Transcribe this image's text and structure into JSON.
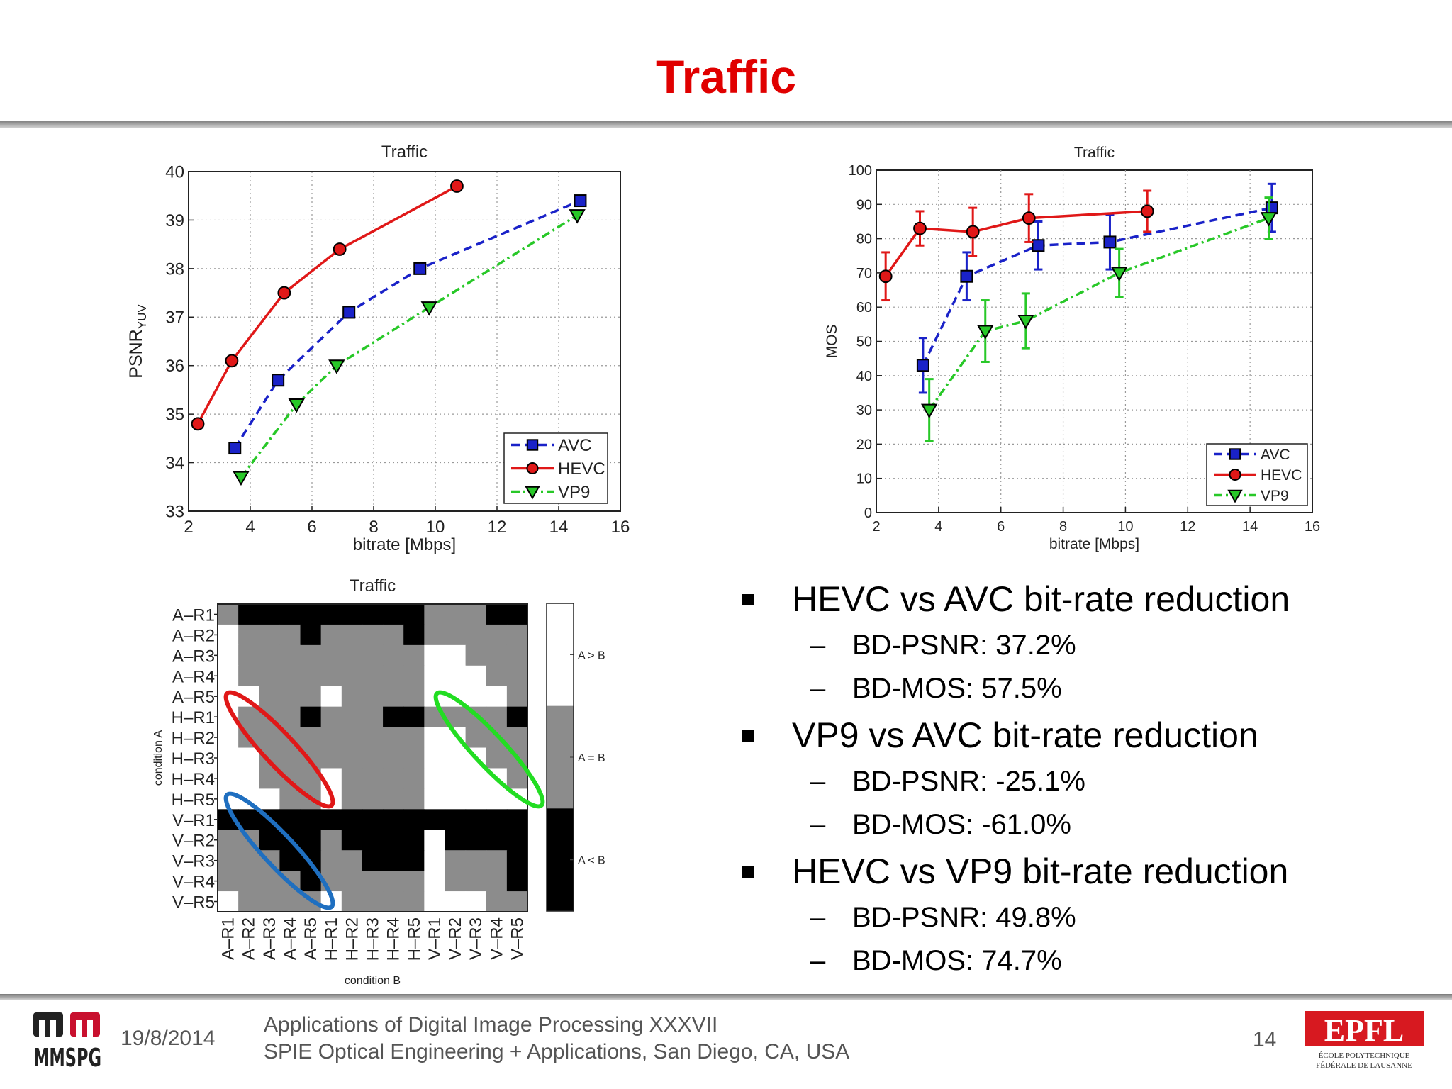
{
  "slide": {
    "title": "Traffic",
    "bullets": [
      {
        "text": "HEVC vs AVC bit-rate reduction",
        "subs": [
          "BD-PSNR: 37.2%",
          "BD-MOS: 57.5%"
        ]
      },
      {
        "text": "VP9 vs AVC bit-rate reduction",
        "subs": [
          "BD-PSNR: -25.1%",
          "BD-MOS: -61.0%"
        ]
      },
      {
        "text": "HEVC vs VP9 bit-rate reduction",
        "subs": [
          "BD-PSNR: 49.8%",
          "BD-MOS: 74.7%"
        ]
      }
    ],
    "dash": "–"
  },
  "footer": {
    "date": "19/8/2014",
    "line1": "Applications of Digital Image Processing XXXVII",
    "line2": "SPIE Optical Engineering + Applications, San Diego, CA, USA",
    "page": "14",
    "logo_left": "MMSPG",
    "logo_right": "EPFL",
    "logo_right_sub1": "ÉCOLE POLYTECHNIQUE",
    "logo_right_sub2": "FÉDÉRALE DE LAUSANNE"
  },
  "colors": {
    "avc": "#1a22c8",
    "hevc": "#e01818",
    "vp9": "#28c828",
    "title": "#e00000",
    "oval_red": "#e01818",
    "oval_green": "#22dd22",
    "oval_blue": "#1f6fc0"
  },
  "chart_data": [
    {
      "type": "line",
      "title": "Traffic",
      "xlabel": "bitrate [Mbps]",
      "ylabel": "PSNR",
      "ylabel_sub": "YUV",
      "xlim": [
        2,
        16
      ],
      "ylim": [
        33,
        40
      ],
      "xticks": [
        2,
        4,
        6,
        8,
        10,
        12,
        14,
        16
      ],
      "yticks": [
        33,
        34,
        35,
        36,
        37,
        38,
        39,
        40
      ],
      "grid": true,
      "legend_position": "bottom-right",
      "series": [
        {
          "name": "AVC",
          "style": "dashed",
          "marker": "square",
          "x": [
            3.5,
            4.9,
            7.2,
            9.5,
            14.7
          ],
          "y": [
            34.3,
            35.7,
            37.1,
            38.0,
            39.4
          ]
        },
        {
          "name": "HEVC",
          "style": "solid",
          "marker": "circle",
          "x": [
            2.3,
            3.4,
            5.1,
            6.9,
            10.7
          ],
          "y": [
            34.8,
            36.1,
            37.5,
            38.4,
            39.7
          ]
        },
        {
          "name": "VP9",
          "style": "dashdot",
          "marker": "triangle-down",
          "x": [
            3.7,
            5.5,
            6.8,
            9.8,
            14.6
          ],
          "y": [
            33.7,
            35.2,
            36.0,
            37.2,
            39.1
          ]
        }
      ]
    },
    {
      "type": "line",
      "title": "Traffic",
      "xlabel": "bitrate [Mbps]",
      "ylabel": "MOS",
      "xlim": [
        2,
        16
      ],
      "ylim": [
        0,
        100
      ],
      "xticks": [
        2,
        4,
        6,
        8,
        10,
        12,
        14,
        16
      ],
      "yticks": [
        0,
        10,
        20,
        30,
        40,
        50,
        60,
        70,
        80,
        90,
        100
      ],
      "grid": true,
      "legend_position": "bottom-right",
      "series": [
        {
          "name": "AVC",
          "style": "dashed",
          "marker": "square",
          "x": [
            3.5,
            4.9,
            7.2,
            9.5,
            14.7
          ],
          "y": [
            43,
            69,
            78,
            79,
            89
          ],
          "err": [
            8,
            7,
            7,
            8,
            7
          ]
        },
        {
          "name": "HEVC",
          "style": "solid",
          "marker": "circle",
          "x": [
            2.3,
            3.4,
            5.1,
            6.9,
            10.7
          ],
          "y": [
            69,
            83,
            82,
            86,
            88
          ],
          "err": [
            7,
            5,
            7,
            7,
            6
          ]
        },
        {
          "name": "VP9",
          "style": "dashdot",
          "marker": "triangle-down",
          "x": [
            3.7,
            5.5,
            6.8,
            9.8,
            14.6
          ],
          "y": [
            30,
            53,
            56,
            70,
            86
          ],
          "err": [
            9,
            9,
            8,
            7,
            6
          ]
        }
      ]
    },
    {
      "type": "heatmap",
      "title": "Traffic",
      "xlabel": "condition B",
      "ylabel": "condition A",
      "labels": [
        "A–R1",
        "A–R2",
        "A–R3",
        "A–R4",
        "A–R5",
        "H–R1",
        "H–R2",
        "H–R3",
        "H–R4",
        "H–R5",
        "V–R1",
        "V–R2",
        "V–R3",
        "V–R4",
        "V–R5"
      ],
      "legend": [
        "A > B",
        "A = B",
        "A < B"
      ],
      "value_meaning": {
        "0": "A > B",
        "1": "A = B",
        "2": "A < B"
      },
      "matrix": [
        [
          1,
          2,
          2,
          2,
          2,
          2,
          2,
          2,
          2,
          2,
          1,
          1,
          1,
          2,
          2
        ],
        [
          0,
          1,
          1,
          1,
          2,
          1,
          1,
          1,
          1,
          2,
          1,
          1,
          1,
          1,
          1
        ],
        [
          0,
          1,
          1,
          1,
          1,
          1,
          1,
          1,
          1,
          1,
          0,
          0,
          1,
          1,
          1
        ],
        [
          0,
          1,
          1,
          1,
          1,
          1,
          1,
          1,
          1,
          1,
          0,
          0,
          0,
          1,
          1
        ],
        [
          0,
          0,
          1,
          1,
          1,
          0,
          1,
          1,
          1,
          1,
          0,
          0,
          0,
          0,
          1
        ],
        [
          0,
          1,
          1,
          1,
          2,
          1,
          1,
          1,
          2,
          2,
          1,
          1,
          1,
          1,
          2
        ],
        [
          0,
          1,
          1,
          1,
          1,
          1,
          1,
          1,
          1,
          1,
          0,
          0,
          1,
          1,
          1
        ],
        [
          0,
          0,
          1,
          1,
          1,
          1,
          1,
          1,
          1,
          1,
          0,
          0,
          0,
          1,
          1
        ],
        [
          0,
          0,
          1,
          1,
          1,
          0,
          1,
          1,
          1,
          1,
          0,
          0,
          0,
          0,
          1
        ],
        [
          0,
          0,
          0,
          1,
          1,
          0,
          1,
          1,
          1,
          1,
          0,
          0,
          0,
          0,
          0
        ],
        [
          2,
          2,
          2,
          2,
          2,
          2,
          2,
          2,
          2,
          2,
          2,
          2,
          2,
          2,
          2
        ],
        [
          1,
          1,
          2,
          2,
          2,
          1,
          2,
          2,
          2,
          2,
          0,
          2,
          2,
          2,
          2
        ],
        [
          1,
          1,
          1,
          2,
          2,
          1,
          1,
          2,
          2,
          2,
          0,
          1,
          1,
          1,
          2
        ],
        [
          1,
          1,
          1,
          1,
          2,
          1,
          1,
          1,
          1,
          1,
          0,
          1,
          1,
          1,
          2
        ],
        [
          0,
          1,
          1,
          1,
          1,
          0,
          1,
          1,
          1,
          1,
          0,
          0,
          0,
          1,
          1
        ]
      ]
    }
  ]
}
